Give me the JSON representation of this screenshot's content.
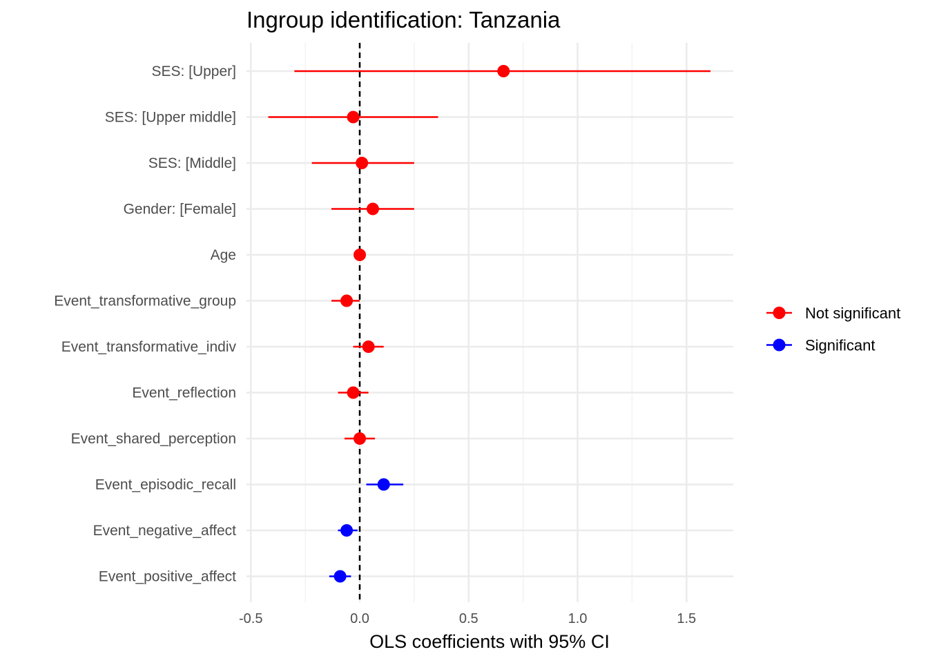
{
  "chart_data": {
    "type": "scatter",
    "title": "Ingroup identification: Tanzania",
    "xlabel": "OLS coefficients with 95% CI",
    "ylabel": "",
    "xlim": [
      -0.55,
      1.72
    ],
    "xticks": [
      -0.5,
      0.0,
      0.5,
      1.0,
      1.5
    ],
    "xtick_labels": [
      "-0.5",
      "0.0",
      "0.5",
      "1.0",
      "1.5"
    ],
    "reference_line": 0,
    "grid": true,
    "legend_position": "right",
    "legend": [
      {
        "label": "Not significant",
        "color": "#ff0000"
      },
      {
        "label": "Significant",
        "color": "#0000ff"
      }
    ],
    "terms": [
      {
        "label": "SES:  [Upper]",
        "estimate": 0.66,
        "ci_low": -0.3,
        "ci_high": 1.61,
        "significant": false
      },
      {
        "label": "SES:  [Upper middle]",
        "estimate": -0.03,
        "ci_low": -0.42,
        "ci_high": 0.36,
        "significant": false
      },
      {
        "label": "SES:  [Middle]",
        "estimate": 0.01,
        "ci_low": -0.22,
        "ci_high": 0.25,
        "significant": false
      },
      {
        "label": "Gender:  [Female]",
        "estimate": 0.06,
        "ci_low": -0.13,
        "ci_high": 0.25,
        "significant": false
      },
      {
        "label": "Age",
        "estimate": 0.0,
        "ci_low": -0.01,
        "ci_high": 0.01,
        "significant": false
      },
      {
        "label": "Event_transformative_group",
        "estimate": -0.06,
        "ci_low": -0.13,
        "ci_high": 0.0,
        "significant": false
      },
      {
        "label": "Event_transformative_indiv",
        "estimate": 0.04,
        "ci_low": -0.03,
        "ci_high": 0.11,
        "significant": false
      },
      {
        "label": "Event_reflection",
        "estimate": -0.03,
        "ci_low": -0.1,
        "ci_high": 0.04,
        "significant": false
      },
      {
        "label": "Event_shared_perception",
        "estimate": 0.0,
        "ci_low": -0.07,
        "ci_high": 0.07,
        "significant": false
      },
      {
        "label": "Event_episodic_recall",
        "estimate": 0.11,
        "ci_low": 0.03,
        "ci_high": 0.2,
        "significant": true
      },
      {
        "label": "Event_negative_affect",
        "estimate": -0.06,
        "ci_low": -0.1,
        "ci_high": -0.01,
        "significant": true
      },
      {
        "label": "Event_positive_affect",
        "estimate": -0.09,
        "ci_low": -0.14,
        "ci_high": -0.04,
        "significant": true
      }
    ]
  }
}
